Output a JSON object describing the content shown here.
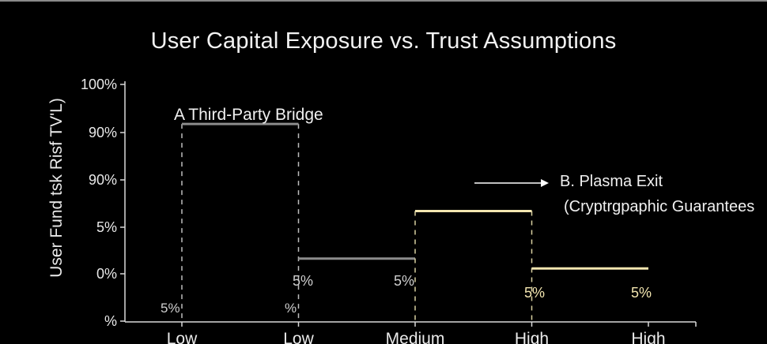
{
  "chart_data": {
    "type": "line",
    "title": "User Capital Exposure vs. Trust Assumptions",
    "ylabel": "User Fund tsk Risf TV'L)",
    "xlabel": "",
    "y_tick_labels": [
      "%",
      "0%",
      "5%",
      "90%",
      "90%",
      "100%"
    ],
    "x_tick_labels": [
      "Low",
      "Low",
      "Medium",
      "High",
      "High"
    ],
    "colors": {
      "series_a": "#8c8c8c",
      "series_b": "#f3e6b0",
      "axis": "#d9d9d9",
      "text": "#f2f2f2"
    },
    "series": [
      {
        "name": "A  Third-Party Bridge",
        "color": "#8c8c8c",
        "segments": [
          {
            "x": [
              0,
              1
            ],
            "y": 4.0,
            "drop_to": 0.6
          },
          {
            "x": [
              1,
              2
            ],
            "y": 0.6
          }
        ],
        "data_labels": [
          {
            "x": 0,
            "text": "5%"
          },
          {
            "x": 1,
            "text": "%"
          },
          {
            "x": 1,
            "text": "5%"
          },
          {
            "x": 2,
            "text": "5%"
          }
        ]
      },
      {
        "name": "B. Plasma Exit",
        "sublabel": "(Cryptrgpaphic Guarantees",
        "color": "#f3e6b0",
        "segments": [
          {
            "x": [
              2,
              3
            ],
            "y": 1.8,
            "drop_to": 0.6
          },
          {
            "x": [
              3,
              4
            ],
            "y": 0.35
          }
        ],
        "data_labels": [
          {
            "x": 3,
            "text": "5%"
          },
          {
            "x": 4,
            "text": "5%"
          }
        ]
      }
    ],
    "ylim": [
      -1,
      5
    ],
    "xlim": [
      0,
      4.5
    ],
    "legend": "inline labels"
  }
}
